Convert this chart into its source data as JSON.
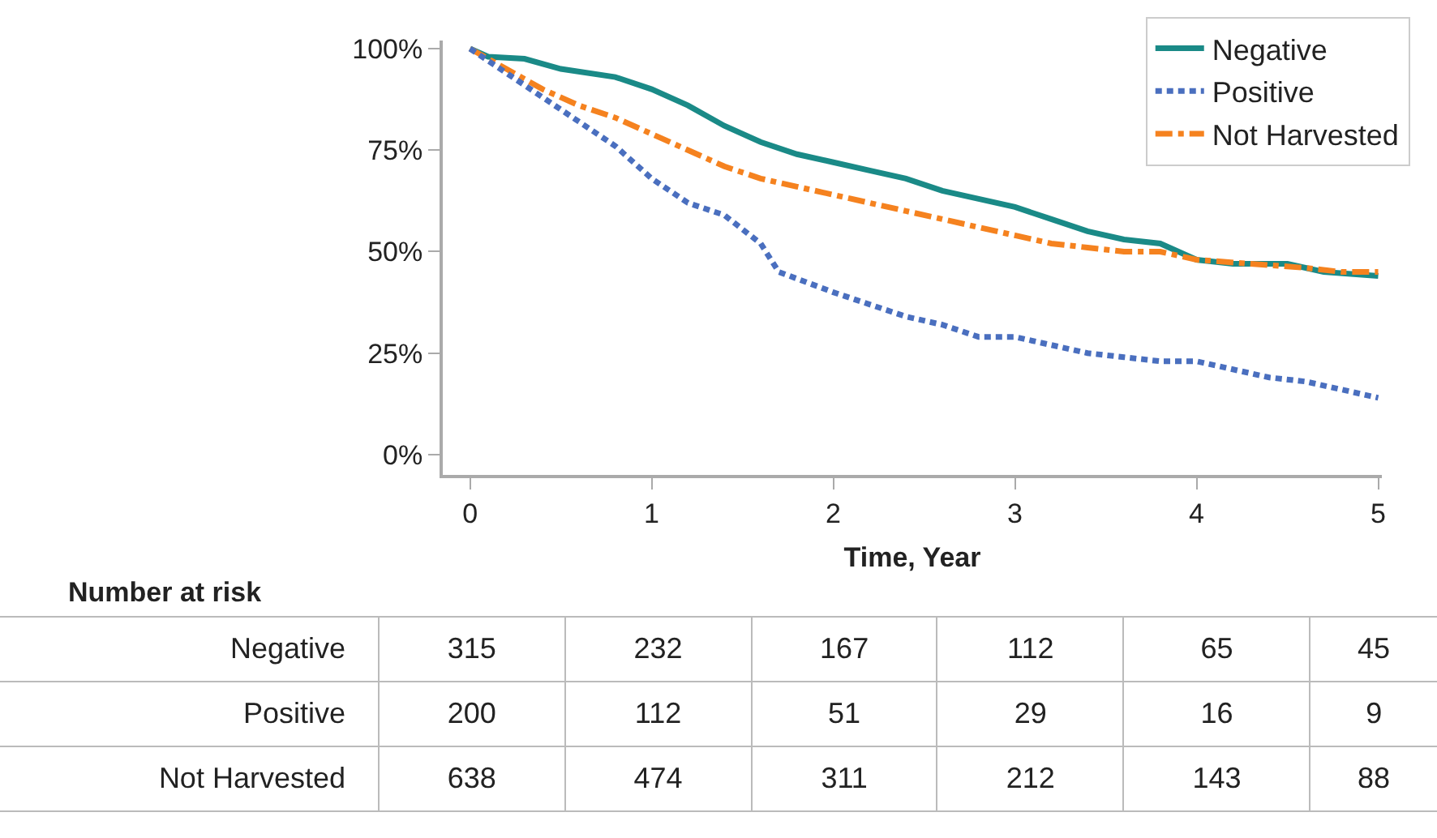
{
  "chart_data": {
    "type": "line",
    "xlabel": "Time, Year",
    "xlim": [
      -0.15,
      5.02
    ],
    "xticks": [
      0,
      1,
      2,
      3,
      4,
      5
    ],
    "ylim": [
      -5,
      102
    ],
    "yticks": [
      {
        "value": 0,
        "label": "0%"
      },
      {
        "value": 25,
        "label": "25%"
      },
      {
        "value": 50,
        "label": "50%"
      },
      {
        "value": 75,
        "label": "75%"
      },
      {
        "value": 100,
        "label": "100%"
      }
    ],
    "grid": false,
    "legend": "top right",
    "marker": "none",
    "series": [
      {
        "name": "Negative",
        "color": "#1a8a87",
        "line_style": "solid",
        "x": [
          0,
          0.1,
          0.3,
          0.5,
          0.8,
          1.0,
          1.2,
          1.4,
          1.6,
          1.8,
          2.0,
          2.2,
          2.4,
          2.6,
          2.8,
          3.0,
          3.2,
          3.4,
          3.6,
          3.8,
          4.0,
          4.2,
          4.5,
          4.7,
          5.0
        ],
        "values": [
          100,
          98,
          97.5,
          95,
          93,
          90,
          86,
          81,
          77,
          74,
          72,
          70,
          68,
          65,
          63,
          61,
          58,
          55,
          53,
          52,
          48,
          47,
          47,
          45,
          44
        ]
      },
      {
        "name": "Positive",
        "color": "#4a6fbf",
        "line_style": "dotted",
        "x": [
          0,
          0.2,
          0.4,
          0.6,
          0.8,
          1.0,
          1.2,
          1.4,
          1.6,
          1.7,
          2.0,
          2.2,
          2.4,
          2.6,
          2.8,
          3.0,
          3.2,
          3.4,
          3.6,
          3.8,
          4.0,
          4.2,
          4.4,
          4.6,
          4.8,
          5.0
        ],
        "values": [
          100,
          94,
          88,
          82,
          76,
          68,
          62,
          59,
          52,
          45,
          40,
          37,
          34,
          32,
          29,
          29,
          27,
          25,
          24,
          23,
          23,
          21,
          19,
          18,
          16,
          14
        ]
      },
      {
        "name": "Not Harvested",
        "color": "#f5821f",
        "line_style": "dashed",
        "x": [
          0,
          0.2,
          0.4,
          0.6,
          0.8,
          1.0,
          1.2,
          1.4,
          1.6,
          1.8,
          2.0,
          2.2,
          2.4,
          2.6,
          2.8,
          3.0,
          3.2,
          3.4,
          3.6,
          3.8,
          4.0,
          4.3,
          4.6,
          4.8,
          5.0
        ],
        "values": [
          100,
          95,
          90,
          86,
          83,
          79,
          75,
          71,
          68,
          66,
          64,
          62,
          60,
          58,
          56,
          54,
          52,
          51,
          50,
          50,
          48,
          47,
          46,
          45,
          45
        ]
      }
    ],
    "annotations": [
      "Number at risk",
      "Negative",
      "315",
      "232",
      "167",
      "112",
      "65",
      "45",
      "Positive",
      "200",
      "112",
      "51",
      "29",
      "16",
      "9",
      "Not Harvested",
      "638",
      "474",
      "311",
      "212",
      "143",
      "88"
    ]
  }
}
